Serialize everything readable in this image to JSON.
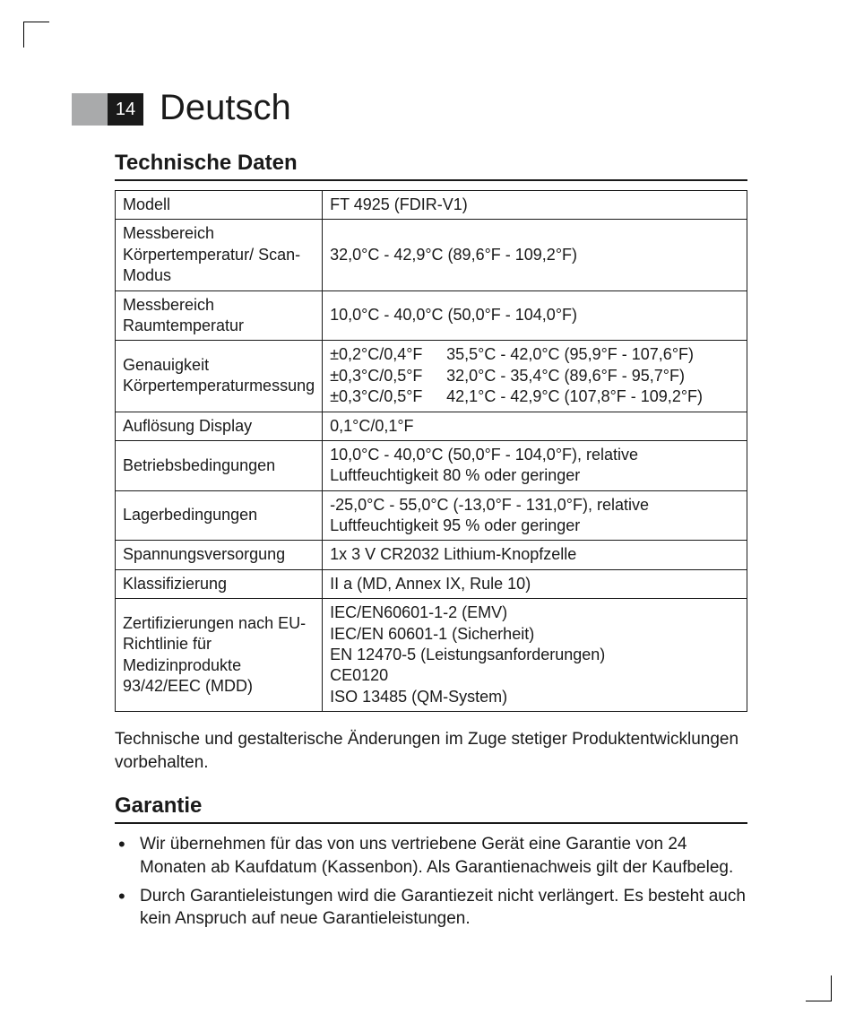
{
  "page_number": "14",
  "language_title": "Deutsch",
  "section1_heading": "Technische Daten",
  "table": {
    "rows": [
      {
        "label": "Modell",
        "value": "FT 4925 (FDIR-V1)"
      },
      {
        "label": "Messbereich Körpertemperatur/ Scan-Modus",
        "value": "32,0°C - 42,9°C (89,6°F - 109,2°F)"
      },
      {
        "label": "Messbereich Raumtemperatur",
        "value": "10,0°C - 40,0°C (50,0°F - 104,0°F)"
      },
      {
        "label": "Genauigkeit Körpertemperaturmessung",
        "accuracy": [
          {
            "tol": "±0,2°C/0,4°F",
            "range": "35,5°C - 42,0°C (95,9°F - 107,6°F)"
          },
          {
            "tol": "±0,3°C/0,5°F",
            "range": "32,0°C - 35,4°C (89,6°F - 95,7°F)"
          },
          {
            "tol": "±0,3°C/0,5°F",
            "range": "42,1°C - 42,9°C (107,8°F - 109,2°F)"
          }
        ]
      },
      {
        "label": "Auflösung Display",
        "value": "0,1°C/0,1°F"
      },
      {
        "label": "Betriebsbedingungen",
        "value": "10,0°C - 40,0°C (50,0°F - 104,0°F), relative Luftfeuchtigkeit 80 % oder geringer"
      },
      {
        "label": "Lagerbedingungen",
        "value": "-25,0°C - 55,0°C (-13,0°F - 131,0°F), relative Luftfeuchtigkeit 95 % oder geringer"
      },
      {
        "label": "Spannungsversorgung",
        "value": "1x 3 V CR2032 Lithium-Knopfzelle"
      },
      {
        "label": "Klassifizierung",
        "value": "II a (MD, Annex IX, Rule 10)"
      },
      {
        "label": "Zertifizierungen nach EU-Richtlinie für Medizinprodukte 93/42/EEC (MDD)",
        "lines": [
          "IEC/EN60601-1-2 (EMV)",
          "IEC/EN 60601-1 (Sicherheit)",
          "EN 12470-5 (Leistungsanforderungen)",
          "CE0120",
          "ISO 13485 (QM-System)"
        ]
      }
    ]
  },
  "note_text": "Technische und gestalterische Änderungen im Zuge stetiger Produktentwicklungen vorbehalten.",
  "section2_heading": "Garantie",
  "warranty_bullets": [
    "Wir übernehmen für das von uns vertriebene Gerät eine Garantie von 24 Monaten ab Kaufdatum (Kassenbon). Als Garantienachweis gilt der Kaufbeleg.",
    "Durch Garantieleistungen wird die Garantiezeit nicht verlängert. Es besteht auch kein Anspruch auf neue Garantieleistungen."
  ],
  "colors": {
    "badge_grey": "#a9aaab",
    "badge_black": "#1a1a1a",
    "text": "#1a1a1a",
    "background": "#ffffff"
  },
  "typography": {
    "lang_title_fontsize": 40,
    "section_heading_fontsize": 24,
    "table_fontsize": 18,
    "body_fontsize": 19
  }
}
